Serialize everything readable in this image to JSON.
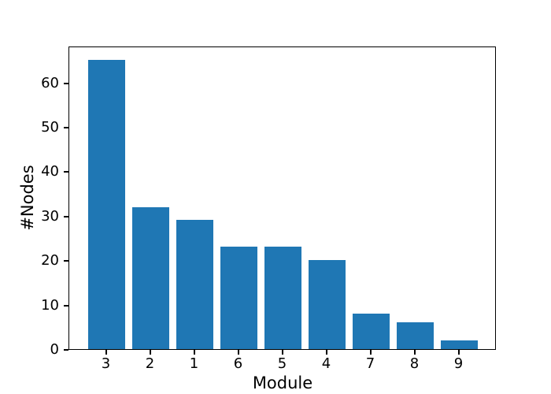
{
  "figure": {
    "background": "#ffffff",
    "axis_color": "#000000"
  },
  "chart_data": {
    "type": "bar",
    "title": "",
    "xlabel": "Module",
    "ylabel": "#Nodes",
    "categories": [
      "3",
      "2",
      "1",
      "6",
      "5",
      "4",
      "7",
      "8",
      "9"
    ],
    "values": [
      65,
      32,
      29,
      23,
      23,
      20,
      8,
      6,
      2
    ],
    "ylim": [
      0,
      68.25
    ],
    "yticks": [
      0,
      10,
      20,
      30,
      40,
      50,
      60
    ],
    "bar_color": "#1f77b4",
    "grid": false,
    "legend": "none"
  }
}
